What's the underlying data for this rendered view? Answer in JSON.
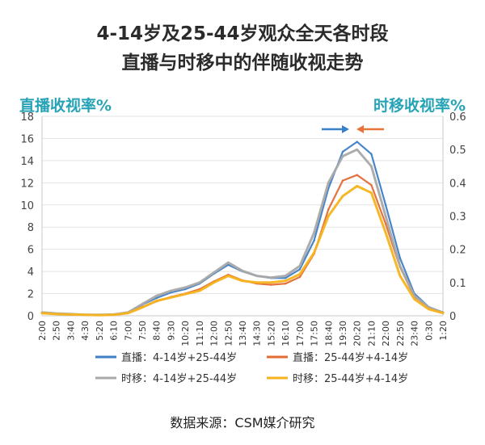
{
  "title_line1": "4-14岁及25-44岁观众全天各时段",
  "title_line2": "直播与时移中的伴随收视走势",
  "source": "数据来源：CSM媒介研究",
  "chart_data": {
    "type": "line",
    "y_left": {
      "label": "直播收视率%",
      "lim": [
        0,
        18
      ],
      "ticks": [
        "0",
        "2",
        "4",
        "6",
        "8",
        "10",
        "12",
        "14",
        "16",
        "18"
      ]
    },
    "y_right": {
      "label": "时移收视率%",
      "lim": [
        0,
        0.6
      ],
      "ticks": [
        "0",
        "0.1",
        "0.2",
        "0.3",
        "0.4",
        "0.5",
        "0.6"
      ]
    },
    "x_ticks": [
      "2:00",
      "2:50",
      "3:40",
      "4:30",
      "5:20",
      "6:10",
      "7:00",
      "7:50",
      "8:40",
      "9:30",
      "10:20",
      "11:10",
      "12:00",
      "12:50",
      "13:40",
      "14:30",
      "15:20",
      "16:10",
      "17:00",
      "17:50",
      "18:40",
      "19:30",
      "20:20",
      "21:10",
      "22:00",
      "22:50",
      "23:40",
      "0:30",
      "1:20"
    ],
    "grid": true,
    "legend_position": "bottom",
    "arrows": {
      "left_arrow_color": "#3a80c8",
      "right_arrow_color": "#e8743b"
    },
    "series": [
      {
        "name": "直播：4-14岁+25-44岁",
        "axis": "left",
        "color": "#3f7fc6",
        "values": [
          0.3,
          0.2,
          0.15,
          0.1,
          0.08,
          0.1,
          0.3,
          1.0,
          1.6,
          2.1,
          2.4,
          2.9,
          3.8,
          4.6,
          4.0,
          3.6,
          3.4,
          3.4,
          4.2,
          6.8,
          11.5,
          14.8,
          15.7,
          14.6,
          10.0,
          5.2,
          2.0,
          0.8,
          0.3
        ]
      },
      {
        "name": "直播：25-44岁+4-14岁",
        "axis": "left",
        "color": "#e36b35",
        "values": [
          0.25,
          0.15,
          0.1,
          0.08,
          0.06,
          0.08,
          0.25,
          0.8,
          1.3,
          1.7,
          2.0,
          2.4,
          3.1,
          3.7,
          3.2,
          2.9,
          2.8,
          2.9,
          3.5,
          5.6,
          9.6,
          12.2,
          12.7,
          11.8,
          8.3,
          4.4,
          1.7,
          0.7,
          0.25
        ]
      },
      {
        "name": "时移：4-14岁+25-44岁",
        "axis": "right",
        "color": "#a9a9a9",
        "values": [
          0.01,
          0.007,
          0.005,
          0.003,
          0.003,
          0.004,
          0.01,
          0.035,
          0.06,
          0.075,
          0.085,
          0.1,
          0.13,
          0.16,
          0.135,
          0.12,
          0.115,
          0.12,
          0.15,
          0.25,
          0.4,
          0.48,
          0.5,
          0.45,
          0.3,
          0.15,
          0.06,
          0.025,
          0.01
        ]
      },
      {
        "name": "时移：25-44岁+4-14岁",
        "axis": "right",
        "color": "#f5b31e",
        "values": [
          0.008,
          0.005,
          0.004,
          0.003,
          0.002,
          0.003,
          0.008,
          0.025,
          0.045,
          0.055,
          0.065,
          0.075,
          0.1,
          0.12,
          0.105,
          0.1,
          0.1,
          0.105,
          0.125,
          0.19,
          0.3,
          0.36,
          0.39,
          0.37,
          0.25,
          0.12,
          0.05,
          0.02,
          0.008
        ]
      }
    ]
  }
}
